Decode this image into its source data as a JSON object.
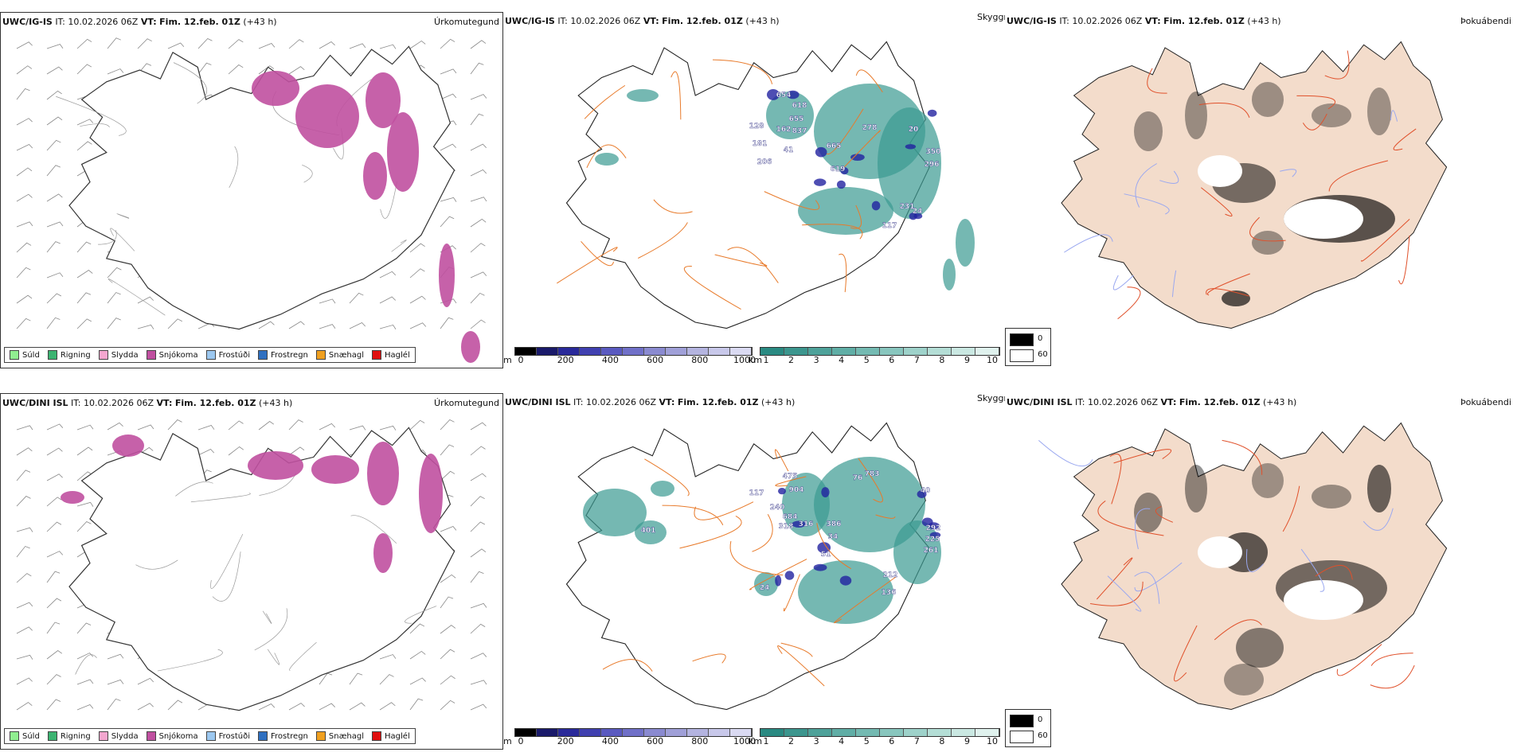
{
  "rows": [
    {
      "model": "UWC/IG-IS",
      "it_label": "IT:",
      "it_value": "10.02.2026 06Z",
      "vt_label": "VT:",
      "vt_value": "Fim. 12.feb. 01Z",
      "lead": "(+43 h)",
      "cloud_labels": [
        "654",
        "618",
        "655",
        "837",
        "665",
        "619",
        "278",
        "20",
        "350",
        "296",
        "231",
        "117",
        "24",
        "128",
        "162",
        "181",
        "41",
        "206"
      ]
    },
    {
      "model": "UWC/DINI ISL",
      "it_label": "IT:",
      "it_value": "10.02.2026 06Z",
      "vt_label": "VT:",
      "vt_value": "Fim. 12.feb. 01Z",
      "lead": "(+43 h)",
      "cloud_labels": [
        "475",
        "904",
        "783",
        "76",
        "40",
        "117",
        "240",
        "684",
        "318",
        "386",
        "316",
        "34",
        "51",
        "292",
        "225",
        "261",
        "212",
        "136",
        "401",
        "24"
      ]
    }
  ],
  "panel_titles": {
    "precip": "Úrkomutegund",
    "visibility": "Skyggni",
    "fog": "Þokuábendi"
  },
  "precip_legend": [
    {
      "label": "Súld",
      "color": "#90ee90"
    },
    {
      "label": "Rigning",
      "color": "#3cb371"
    },
    {
      "label": "Slydda",
      "color": "#f4a6cf"
    },
    {
      "label": "Snjókoma",
      "color": "#c050a0"
    },
    {
      "label": "Frostúði",
      "color": "#9cc8f0"
    },
    {
      "label": "Frostregn",
      "color": "#3070c0"
    },
    {
      "label": "Snæhagl",
      "color": "#f0a020"
    },
    {
      "label": "Haglél",
      "color": "#e01010"
    }
  ],
  "cloud_base_scale": {
    "unit": "m",
    "ticks": [
      "0",
      "200",
      "400",
      "600",
      "800",
      "1000"
    ],
    "colors": [
      "#000000",
      "#1a1a6a",
      "#2a2a9a",
      "#4040b0",
      "#5a5ac0",
      "#7070c8",
      "#8a8ad0",
      "#a0a0d8",
      "#b4b4e0",
      "#c8c8ea",
      "#dadaf2"
    ]
  },
  "visibility_scale": {
    "unit": "km",
    "ticks": [
      "1",
      "2",
      "3",
      "4",
      "5",
      "6",
      "7",
      "8",
      "9",
      "10"
    ],
    "colors": [
      "#2a8a82",
      "#3c968e",
      "#4ea29a",
      "#60aea6",
      "#74bab2",
      "#88c6be",
      "#9ed2ca",
      "#b4ded6",
      "#cae8e2",
      "#e0f2ee"
    ]
  },
  "fog_key": [
    {
      "label": "0",
      "color": "#000000"
    },
    {
      "label": "60",
      "color": "#ffffff"
    }
  ],
  "colors": {
    "land_fog": "#f3dccb",
    "roads": "#e87a2a",
    "snow_fill": "#c050a0",
    "vis_fill": "#3a9a92",
    "low_cloud": "#2222a0"
  }
}
